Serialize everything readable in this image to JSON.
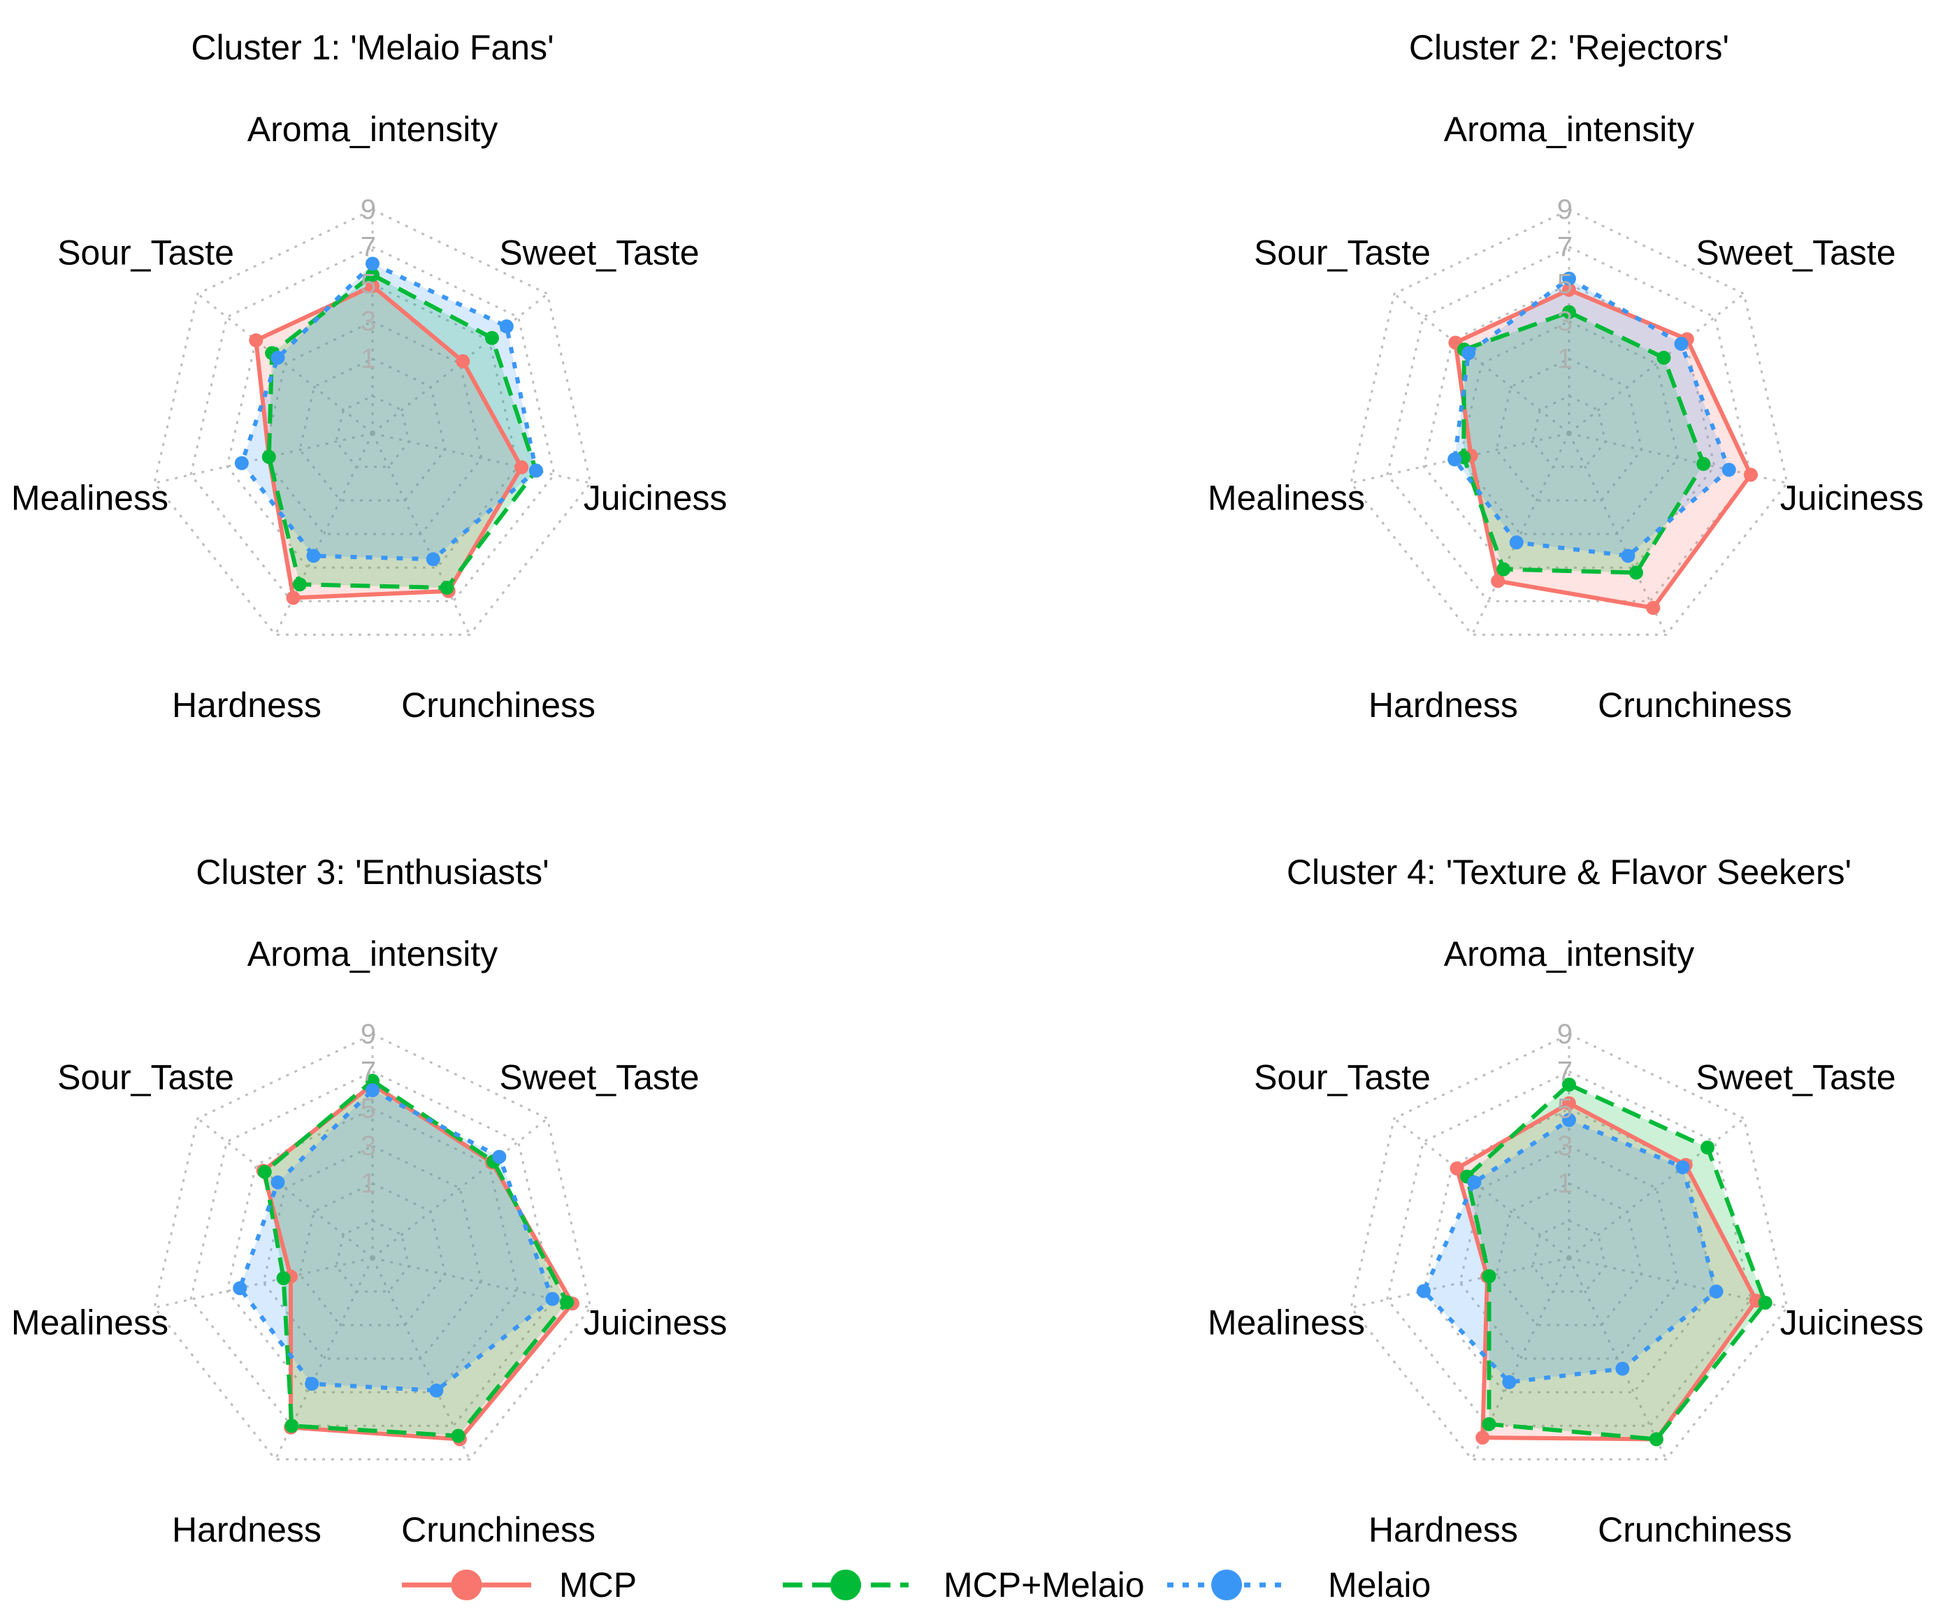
{
  "chart_data": {
    "type": "radar",
    "axes": [
      "Aroma_intensity",
      "Sweet_Taste",
      "Juiciness",
      "Crunchiness",
      "Hardness",
      "Mealiness",
      "Sour_Taste"
    ],
    "ticks": [
      "1",
      "3",
      "5",
      "7",
      "9"
    ],
    "rlim": [
      -3,
      9
    ],
    "grid": true,
    "legend_position": "bottom",
    "series_styles": [
      {
        "name": "MCP",
        "color": "#F8766D",
        "dash": "solid"
      },
      {
        "name": "MCP+Melaio",
        "color": "#00BA38",
        "dash": "dashed"
      },
      {
        "name": "Melaio",
        "color": "#3A96F5",
        "dash": "dotted"
      }
    ],
    "panels": [
      {
        "title": "Cluster 1: 'Melaio Fans'",
        "series": [
          {
            "name": "MCP",
            "values": [
              4.9,
              3.2,
              5.2,
              6.4,
              6.8,
              2.7,
              5.0
            ]
          },
          {
            "name": "MCP+Melaio",
            "values": [
              5.5,
              5.2,
              6.0,
              6.2,
              6.0,
              2.7,
              3.9
            ]
          },
          {
            "name": "Melaio",
            "values": [
              6.1,
              6.2,
              6.0,
              4.5,
              4.3,
              4.2,
              3.5
            ]
          }
        ]
      },
      {
        "title": "Cluster 2: 'Rejectors'",
        "series": [
          {
            "name": "MCP",
            "values": [
              4.7,
              5.1,
              7.0,
              7.4,
              5.8,
              2.4,
              4.8
            ]
          },
          {
            "name": "MCP+Melaio",
            "values": [
              3.5,
              3.5,
              4.4,
              5.3,
              5.1,
              2.8,
              4.2
            ]
          },
          {
            "name": "Melaio",
            "values": [
              5.3,
              4.7,
              5.8,
              4.3,
              3.5,
              3.3,
              3.9
            ]
          }
        ]
      },
      {
        "title": "Cluster 3: 'Enthusiasts'",
        "series": [
          {
            "name": "MCP",
            "values": [
              6.3,
              5.2,
              8.0,
              7.8,
              7.1,
              1.5,
              4.5
            ]
          },
          {
            "name": "MCP+Melaio",
            "values": [
              6.5,
              5.3,
              7.7,
              7.6,
              7.0,
              1.9,
              4.4
            ]
          },
          {
            "name": "Melaio",
            "values": [
              6.0,
              5.7,
              6.9,
              4.9,
              4.5,
              4.3,
              3.5
            ]
          }
        ]
      },
      {
        "title": "Cluster 4: 'Texture & Flavor Seekers'",
        "series": [
          {
            "name": "MCP",
            "values": [
              5.3,
              5.0,
              7.3,
              7.8,
              7.7,
              1.5,
              4.7
            ]
          },
          {
            "name": "MCP+Melaio",
            "values": [
              6.3,
              6.5,
              7.8,
              7.8,
              6.9,
              1.4,
              4.0
            ]
          },
          {
            "name": "Melaio",
            "values": [
              4.4,
              4.8,
              5.1,
              3.6,
              4.4,
              5.0,
              3.5
            ]
          }
        ]
      }
    ]
  }
}
